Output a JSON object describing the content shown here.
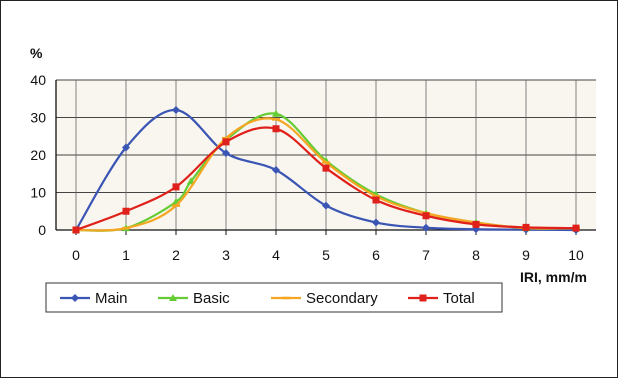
{
  "chart_data": {
    "type": "line",
    "title": "",
    "ylabel": "%",
    "xlabel": "IRI, mm/m",
    "x": [
      0,
      1,
      2,
      3,
      4,
      5,
      6,
      7,
      8,
      9,
      10
    ],
    "x_ticks": [
      "0",
      "1",
      "2",
      "3",
      "4",
      "5",
      "6",
      "7",
      "8",
      "9",
      "10"
    ],
    "y_ticks": [
      "0",
      "10",
      "20",
      "30",
      "40"
    ],
    "xlim": [
      -0.4,
      10.4
    ],
    "ylim": [
      0,
      40
    ],
    "grid": true,
    "legend_position": "bottom",
    "series": [
      {
        "name": "Main",
        "color": "#3a55b4",
        "marker": "diamond",
        "x": [
          0,
          1,
          2,
          3,
          4,
          5,
          6,
          7,
          8,
          9,
          10
        ],
        "values": [
          0,
          22,
          32,
          20.5,
          16,
          6.5,
          2,
          0.6,
          0.2,
          0.1,
          0
        ]
      },
      {
        "name": "Basic",
        "color": "#66cc33",
        "marker": "triangle",
        "x": [
          0,
          1,
          2,
          2.3,
          3,
          4,
          5,
          6,
          7,
          8,
          9,
          10
        ],
        "values": [
          0,
          0.5,
          7.5,
          13,
          24,
          31,
          18.5,
          9.5,
          4.5,
          2,
          0.5,
          0.5
        ]
      },
      {
        "name": "Secondary",
        "color": "#f5a623",
        "marker": "dash",
        "x": [
          0,
          1,
          2,
          3,
          4,
          5,
          6,
          7,
          8,
          9,
          10
        ],
        "values": [
          0,
          0.5,
          6.5,
          24.5,
          29.5,
          18,
          9,
          4.5,
          2,
          0.5,
          0.5
        ]
      },
      {
        "name": "Total",
        "color": "#e0201a",
        "marker": "square",
        "x": [
          0,
          1,
          2,
          3,
          4,
          5,
          6,
          7,
          8,
          9,
          10
        ],
        "values": [
          0,
          5,
          11.5,
          23.5,
          27,
          16.5,
          8,
          3.8,
          1.5,
          0.7,
          0.5
        ]
      }
    ]
  }
}
